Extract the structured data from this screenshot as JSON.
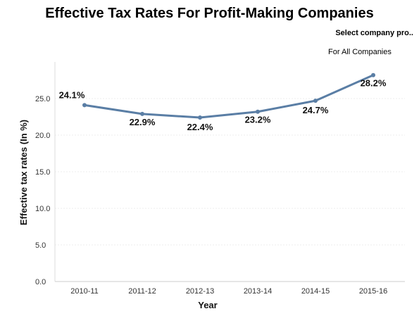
{
  "header": {
    "title": "Effective Tax Rates For Profit-Making Companies",
    "selector_label": "Select company pro..",
    "selector_value": "For All Companies"
  },
  "chart_data": {
    "type": "line",
    "title": "Effective Tax Rates For Profit-Making Companies",
    "xlabel": "Year",
    "ylabel": "Effective tax rates (In %)",
    "categories": [
      "2010-11",
      "2011-12",
      "2012-13",
      "2013-14",
      "2014-15",
      "2015-16"
    ],
    "series": [
      {
        "values": [
          24.1,
          22.9,
          22.4,
          23.2,
          24.7,
          28.2
        ],
        "labels": [
          "24.1%",
          "22.9%",
          "22.4%",
          "23.2%",
          "24.7%",
          "28.2%"
        ],
        "color": "#5a7ea5"
      }
    ],
    "yticks": [
      "0.0",
      "5.0",
      "10.0",
      "15.0",
      "20.0",
      "25.0"
    ],
    "ylim": [
      0,
      30
    ],
    "grid": true,
    "legend": "none"
  }
}
